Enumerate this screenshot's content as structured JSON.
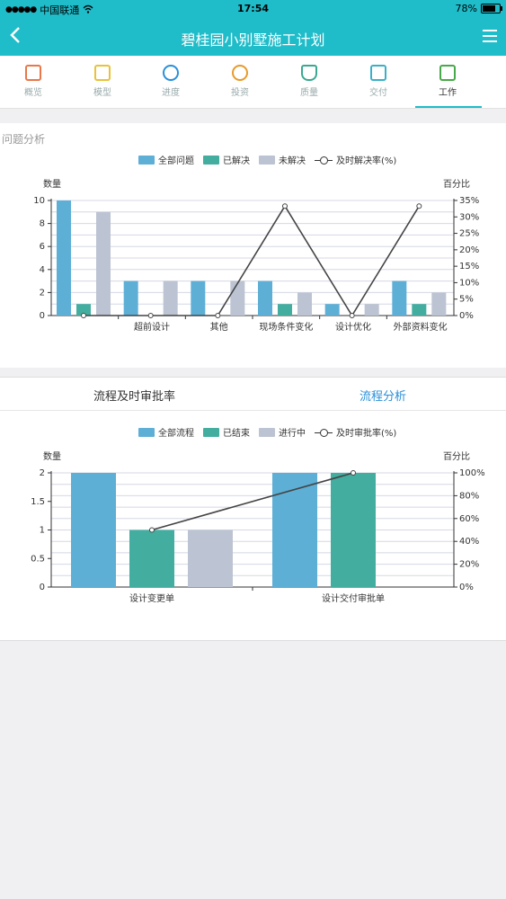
{
  "status_bar": {
    "carrier": "中国联通",
    "time": "17:54",
    "battery": "78%"
  },
  "nav": {
    "title": "碧桂园小别墅施工计划"
  },
  "tabs": [
    {
      "label": "概览",
      "color": "#e8784a"
    },
    {
      "label": "模型",
      "color": "#e9c23a"
    },
    {
      "label": "进度",
      "color": "#2a8fd8"
    },
    {
      "label": "投资",
      "color": "#e89a2a"
    },
    {
      "label": "质量",
      "color": "#3aa890"
    },
    {
      "label": "交付",
      "color": "#3ab0c8"
    },
    {
      "label": "工作",
      "color": "#49a849",
      "active": true
    }
  ],
  "issue_section": {
    "title": "问题分析",
    "legend": [
      "全部问题",
      "已解决",
      "未解决",
      "及时解决率(%)"
    ],
    "left_axis_title": "数量",
    "right_axis_title": "百分比"
  },
  "process_section": {
    "tab_left": "流程及时审批率",
    "tab_right": "流程分析",
    "legend": [
      "全部流程",
      "已结束",
      "进行中",
      "及时审批率(%)"
    ],
    "left_axis_title": "数量",
    "right_axis_title": "百分比"
  },
  "chart_data": [
    {
      "type": "bar",
      "categories": [
        "",
        "超前设计",
        "其他",
        "现场条件变化",
        "设计优化",
        "外部资料变化"
      ],
      "series": [
        {
          "name": "全部问题",
          "color": "#5eafd6",
          "values": [
            10,
            3,
            3,
            3,
            1,
            3
          ]
        },
        {
          "name": "已解决",
          "color": "#43aea0",
          "values": [
            1,
            0,
            0,
            1,
            0,
            1
          ]
        },
        {
          "name": "未解决",
          "color": "#bcc3d2",
          "values": [
            9,
            3,
            3,
            2,
            1,
            2
          ]
        },
        {
          "name": "及时解决率(%)",
          "type": "line",
          "axis": "right",
          "values": [
            0,
            0,
            0,
            33.3,
            0,
            33.3
          ]
        }
      ],
      "left_ticks": [
        0,
        2,
        4,
        6,
        8,
        10
      ],
      "right_ticks": [
        "0%",
        "5%",
        "10%",
        "15%",
        "20%",
        "25%",
        "30%",
        "35%"
      ],
      "ylim": [
        0,
        10
      ],
      "y2lim": [
        0,
        35
      ]
    },
    {
      "type": "bar",
      "categories": [
        "设计变更单",
        "设计交付审批单"
      ],
      "series": [
        {
          "name": "全部流程",
          "color": "#5eafd6",
          "values": [
            2,
            2
          ]
        },
        {
          "name": "已结束",
          "color": "#43aea0",
          "values": [
            1,
            2
          ]
        },
        {
          "name": "进行中",
          "color": "#bcc3d2",
          "values": [
            1,
            0
          ]
        },
        {
          "name": "及时审批率(%)",
          "type": "line",
          "axis": "right",
          "values": [
            50,
            100
          ]
        }
      ],
      "left_ticks": [
        "0",
        "0.5",
        "1",
        "1.5",
        "2"
      ],
      "right_ticks": [
        "0%",
        "20%",
        "40%",
        "60%",
        "80%",
        "100%"
      ],
      "ylim": [
        0,
        2
      ],
      "y2lim": [
        0,
        100
      ]
    }
  ]
}
